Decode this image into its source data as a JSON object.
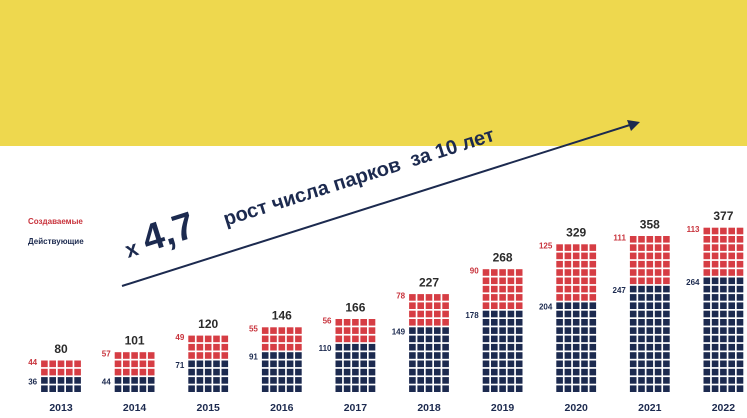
{
  "colors": {
    "banner": "#eed84e",
    "created": "#d63d44",
    "active": "#1c2a4f",
    "label_created": "#c8333c",
    "label_active": "#1c2a4f",
    "total_label": "#2b2b2b",
    "year_label": "#1c2a4f",
    "headline": "#1c2a4f"
  },
  "headline": {
    "multiplier_prefix": "x",
    "multiplier_value": "4,7",
    "text": "рост числа парков  за 10 лет"
  },
  "chart_data": {
    "type": "bar",
    "stacked": true,
    "grid": false,
    "legend_position": "left",
    "categories": [
      "2013",
      "2014",
      "2015",
      "2016",
      "2017",
      "2018",
      "2019",
      "2020",
      "2021",
      "2022"
    ],
    "series": [
      {
        "name": "Действующие",
        "values": [
          36,
          44,
          71,
          91,
          110,
          149,
          178,
          204,
          247,
          264
        ]
      },
      {
        "name": "Создаваемые",
        "values": [
          44,
          57,
          49,
          55,
          56,
          78,
          90,
          125,
          111,
          113
        ]
      }
    ],
    "totals": [
      80,
      101,
      120,
      146,
      166,
      227,
      268,
      329,
      358,
      377
    ]
  }
}
